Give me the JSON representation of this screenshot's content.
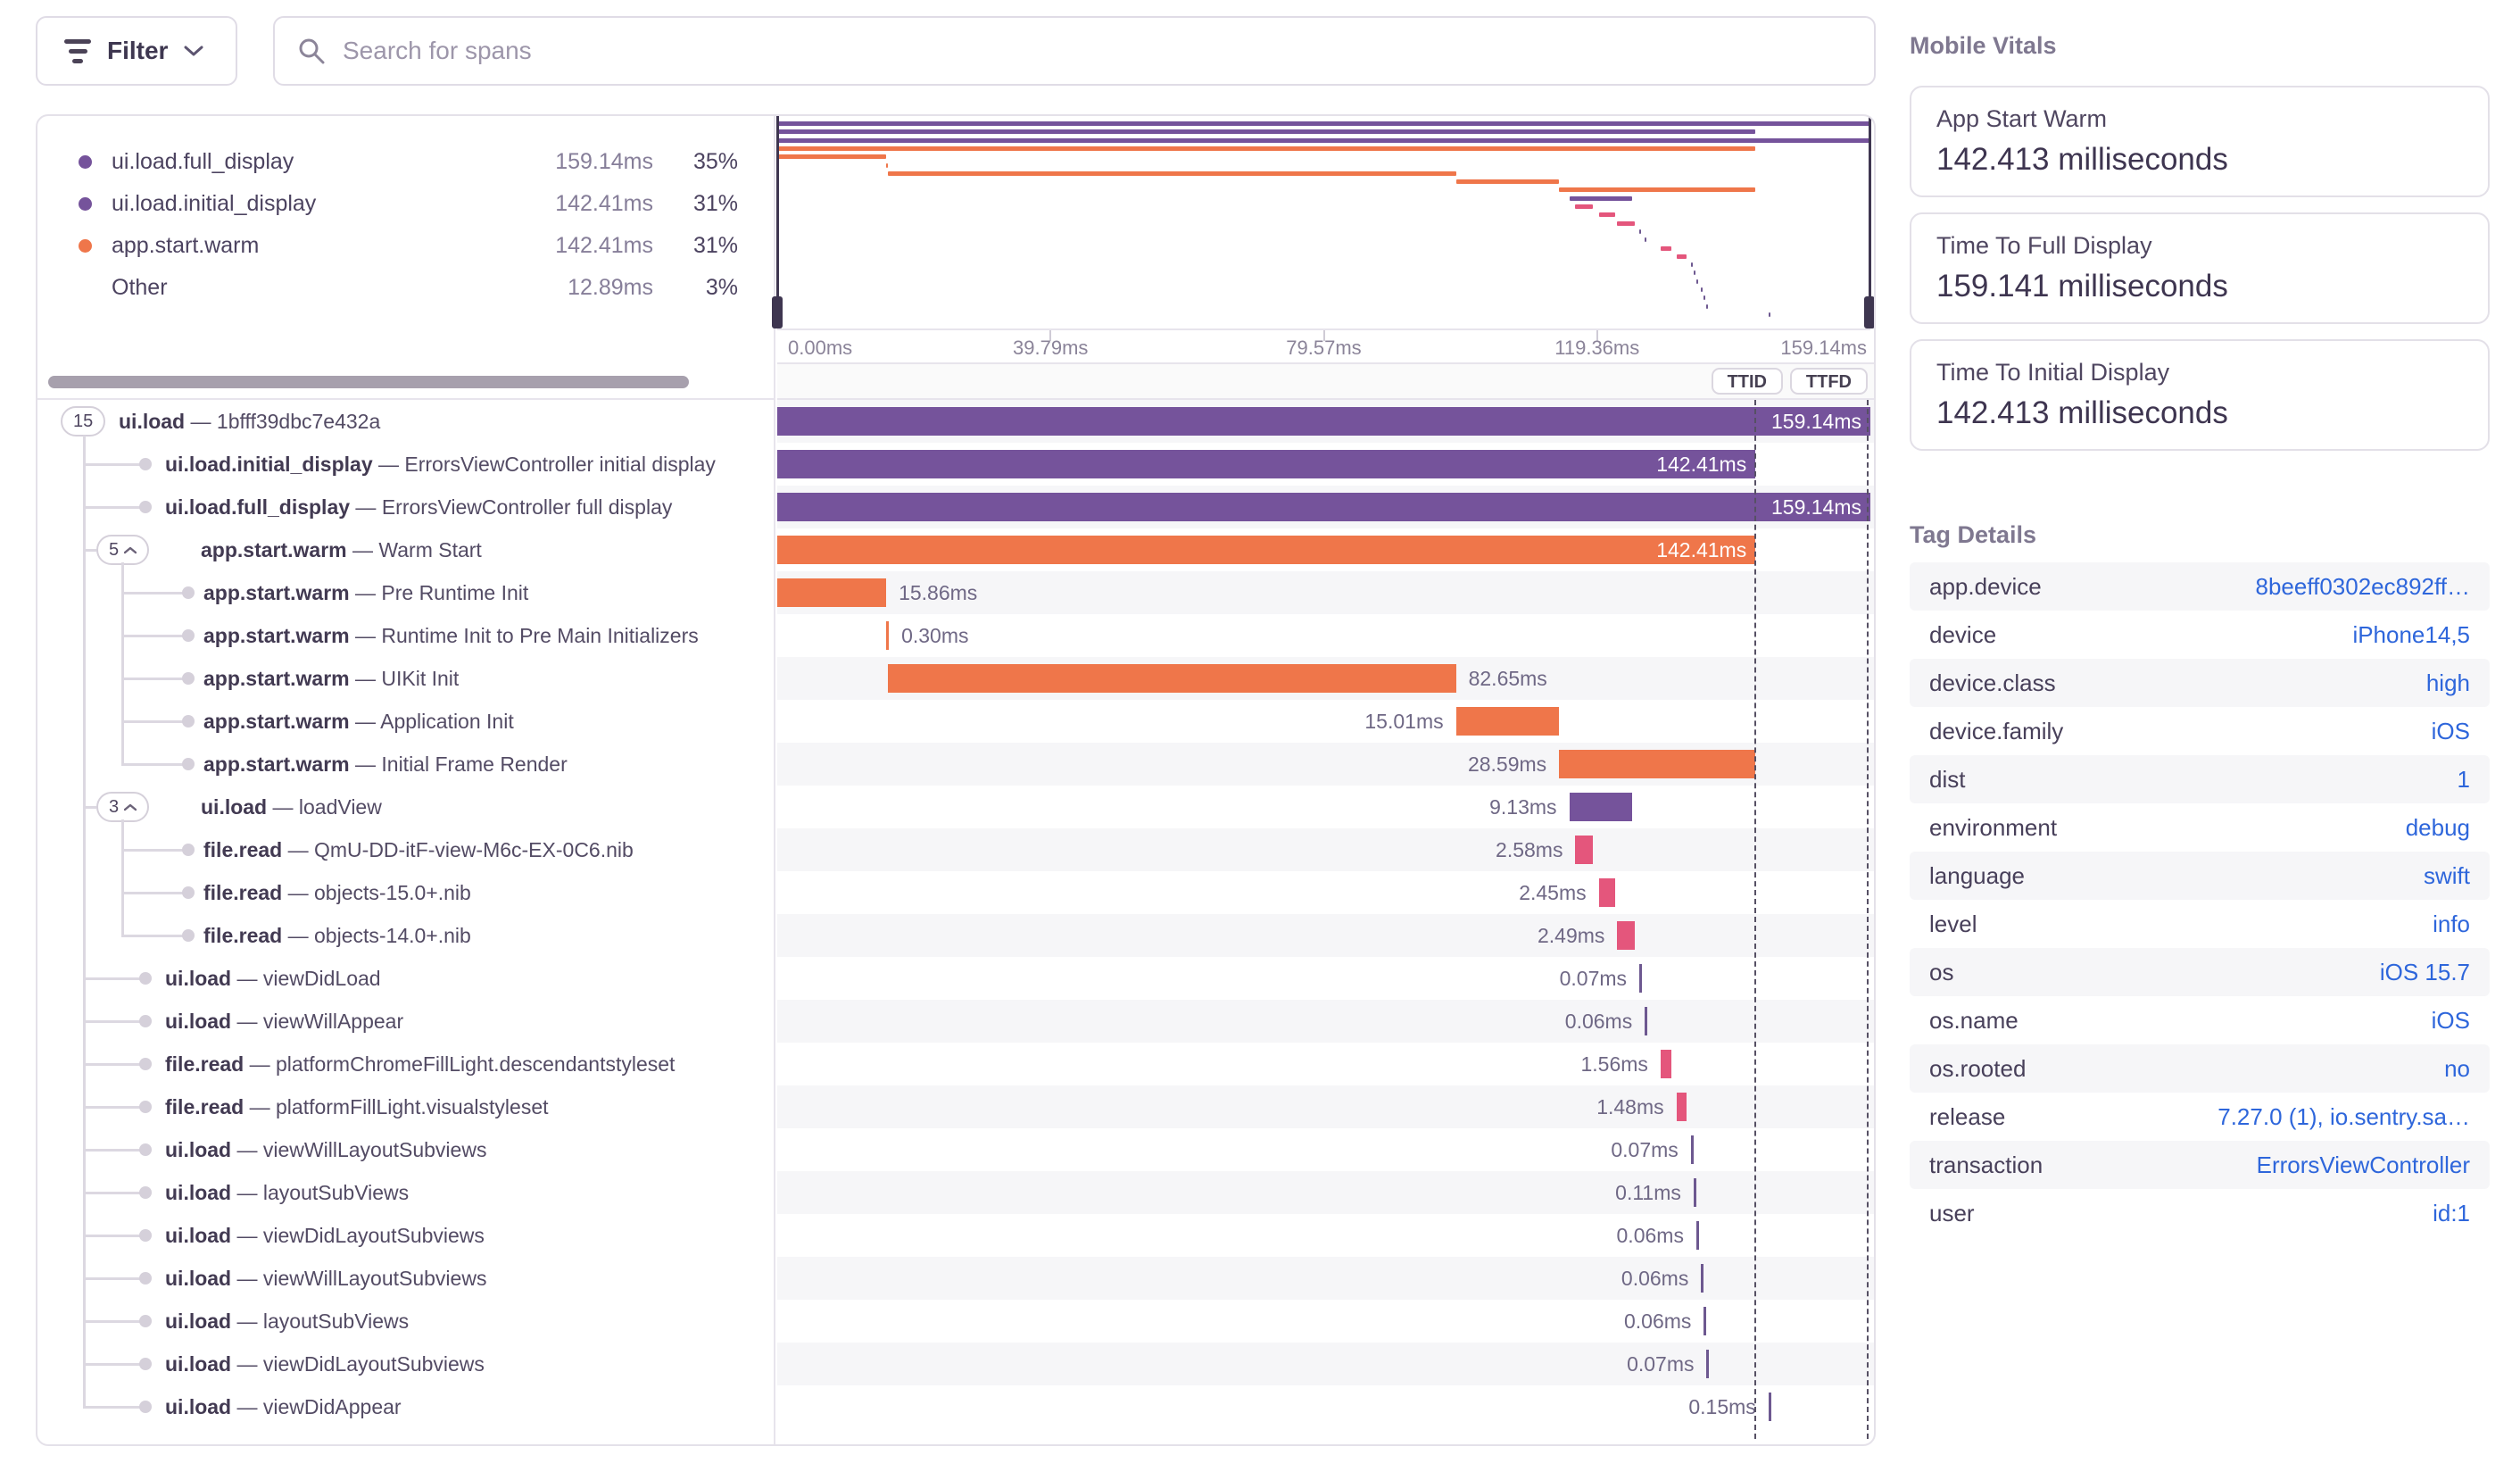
{
  "toolbar": {
    "filter_label": "Filter",
    "search_placeholder": "Search for spans"
  },
  "legend": [
    {
      "label": "ui.load.full_display",
      "duration": "159.14ms",
      "pct": "35%",
      "color": "#75539b"
    },
    {
      "label": "ui.load.initial_display",
      "duration": "142.41ms",
      "pct": "31%",
      "color": "#75539b"
    },
    {
      "label": "app.start.warm",
      "duration": "142.41ms",
      "pct": "31%",
      "color": "#ef764a"
    },
    {
      "label": "Other",
      "duration": "12.89ms",
      "pct": "3%",
      "color": ""
    }
  ],
  "timeline": {
    "total_ms": 159.14,
    "axis_ticks": [
      "0.00ms",
      "39.79ms",
      "79.57ms",
      "119.36ms",
      "159.14ms"
    ],
    "ttid_label": "TTID",
    "ttfd_label": "TTFD",
    "ttid_ms": 142.41,
    "ttfd_ms": 159.14
  },
  "spans_meta": {
    "separator": "—"
  },
  "spans": [
    {
      "op": "ui.load",
      "desc": "1bfff39dbc7e432a",
      "badge": "15",
      "chevron": false,
      "level": 0,
      "start": 0,
      "dur": 159.14,
      "color": "#75539b",
      "label": "159.14ms",
      "label_pos": "inside",
      "tick": false
    },
    {
      "op": "ui.load.initial_display",
      "desc": "ErrorsViewController initial display",
      "badge": "",
      "chevron": false,
      "level": 1,
      "start": 0,
      "dur": 142.41,
      "color": "#75539b",
      "label": "142.41ms",
      "label_pos": "inside",
      "tick": false
    },
    {
      "op": "ui.load.full_display",
      "desc": "ErrorsViewController full display",
      "badge": "",
      "chevron": false,
      "level": 1,
      "start": 0,
      "dur": 159.14,
      "color": "#75539b",
      "label": "159.14ms",
      "label_pos": "inside",
      "tick": false
    },
    {
      "op": "app.start.warm",
      "desc": "Warm Start",
      "badge": "5",
      "chevron": true,
      "level": 1,
      "start": 0,
      "dur": 142.41,
      "color": "#ef764a",
      "label": "142.41ms",
      "label_pos": "inside",
      "tick": false
    },
    {
      "op": "app.start.warm",
      "desc": "Pre Runtime Init",
      "badge": "",
      "chevron": false,
      "level": 2,
      "start": 0,
      "dur": 15.86,
      "color": "#ef764a",
      "label": "15.86ms",
      "label_pos": "right",
      "tick": false
    },
    {
      "op": "app.start.warm",
      "desc": "Runtime Init to Pre Main Initializers",
      "badge": "",
      "chevron": false,
      "level": 2,
      "start": 15.86,
      "dur": 0.3,
      "color": "#ef764a",
      "label": "0.30ms",
      "label_pos": "right",
      "tick": true
    },
    {
      "op": "app.start.warm",
      "desc": "UIKit Init",
      "badge": "",
      "chevron": false,
      "level": 2,
      "start": 16.16,
      "dur": 82.65,
      "color": "#ef764a",
      "label": "82.65ms",
      "label_pos": "right",
      "tick": false
    },
    {
      "op": "app.start.warm",
      "desc": "Application Init",
      "badge": "",
      "chevron": false,
      "level": 2,
      "start": 98.81,
      "dur": 15.01,
      "color": "#ef764a",
      "label": "15.01ms",
      "label_pos": "left",
      "tick": false
    },
    {
      "op": "app.start.warm",
      "desc": "Initial Frame Render",
      "badge": "",
      "chevron": false,
      "level": 2,
      "start": 113.82,
      "dur": 28.59,
      "color": "#ef764a",
      "label": "28.59ms",
      "label_pos": "left",
      "tick": false
    },
    {
      "op": "ui.load",
      "desc": "loadView",
      "badge": "3",
      "chevron": true,
      "level": 1,
      "start": 115.3,
      "dur": 9.13,
      "color": "#75539b",
      "label": "9.13ms",
      "label_pos": "left",
      "tick": false
    },
    {
      "op": "file.read",
      "desc": "QmU-DD-itF-view-M6c-EX-0C6.nib",
      "badge": "",
      "chevron": false,
      "level": 2,
      "start": 116.2,
      "dur": 2.58,
      "color": "#e4567c",
      "label": "2.58ms",
      "label_pos": "left",
      "tick": false
    },
    {
      "op": "file.read",
      "desc": "objects-15.0+.nib",
      "badge": "",
      "chevron": false,
      "level": 2,
      "start": 119.6,
      "dur": 2.45,
      "color": "#e4567c",
      "label": "2.45ms",
      "label_pos": "left",
      "tick": false
    },
    {
      "op": "file.read",
      "desc": "objects-14.0+.nib",
      "badge": "",
      "chevron": false,
      "level": 2,
      "start": 122.3,
      "dur": 2.49,
      "color": "#e4567c",
      "label": "2.49ms",
      "label_pos": "left",
      "tick": false
    },
    {
      "op": "ui.load",
      "desc": "viewDidLoad",
      "badge": "",
      "chevron": false,
      "level": 1,
      "start": 125.5,
      "dur": 0.07,
      "color": "#6d5890",
      "label": "0.07ms",
      "label_pos": "left",
      "tick": true
    },
    {
      "op": "ui.load",
      "desc": "viewWillAppear",
      "badge": "",
      "chevron": false,
      "level": 1,
      "start": 126.3,
      "dur": 0.06,
      "color": "#6d5890",
      "label": "0.06ms",
      "label_pos": "left",
      "tick": true
    },
    {
      "op": "file.read",
      "desc": "platformChromeFillLight.descendantstyleset",
      "badge": "",
      "chevron": false,
      "level": 1,
      "start": 128.6,
      "dur": 1.56,
      "color": "#e4567c",
      "label": "1.56ms",
      "label_pos": "left",
      "tick": false
    },
    {
      "op": "file.read",
      "desc": "platformFillLight.visualstyleset",
      "badge": "",
      "chevron": false,
      "level": 1,
      "start": 130.9,
      "dur": 1.48,
      "color": "#e4567c",
      "label": "1.48ms",
      "label_pos": "left",
      "tick": false
    },
    {
      "op": "ui.load",
      "desc": "viewWillLayoutSubviews",
      "badge": "",
      "chevron": false,
      "level": 1,
      "start": 133.0,
      "dur": 0.07,
      "color": "#6d5890",
      "label": "0.07ms",
      "label_pos": "left",
      "tick": true
    },
    {
      "op": "ui.load",
      "desc": "layoutSubViews",
      "badge": "",
      "chevron": false,
      "level": 1,
      "start": 133.4,
      "dur": 0.11,
      "color": "#6d5890",
      "label": "0.11ms",
      "label_pos": "left",
      "tick": true
    },
    {
      "op": "ui.load",
      "desc": "viewDidLayoutSubviews",
      "badge": "",
      "chevron": false,
      "level": 1,
      "start": 133.8,
      "dur": 0.06,
      "color": "#6d5890",
      "label": "0.06ms",
      "label_pos": "left",
      "tick": true
    },
    {
      "op": "ui.load",
      "desc": "viewWillLayoutSubviews",
      "badge": "",
      "chevron": false,
      "level": 1,
      "start": 134.5,
      "dur": 0.06,
      "color": "#6d5890",
      "label": "0.06ms",
      "label_pos": "left",
      "tick": true
    },
    {
      "op": "ui.load",
      "desc": "layoutSubViews",
      "badge": "",
      "chevron": false,
      "level": 1,
      "start": 134.9,
      "dur": 0.06,
      "color": "#6d5890",
      "label": "0.06ms",
      "label_pos": "left",
      "tick": true
    },
    {
      "op": "ui.load",
      "desc": "viewDidLayoutSubviews",
      "badge": "",
      "chevron": false,
      "level": 1,
      "start": 135.3,
      "dur": 0.07,
      "color": "#6d5890",
      "label": "0.07ms",
      "label_pos": "left",
      "tick": true
    },
    {
      "op": "ui.load",
      "desc": "viewDidAppear",
      "badge": "",
      "chevron": false,
      "level": 1,
      "start": 144.3,
      "dur": 0.15,
      "color": "#6d5890",
      "label": "0.15ms",
      "label_pos": "left",
      "tick": true
    }
  ],
  "vitals": {
    "title": "Mobile Vitals",
    "cards": [
      {
        "title": "App Start Warm",
        "value": "142.413 milliseconds"
      },
      {
        "title": "Time To Full Display",
        "value": "159.141 milliseconds"
      },
      {
        "title": "Time To Initial Display",
        "value": "142.413 milliseconds"
      }
    ]
  },
  "tags": {
    "title": "Tag Details",
    "rows": [
      {
        "key": "app.device",
        "value": "8beeff0302ec892ff…"
      },
      {
        "key": "device",
        "value": "iPhone14,5"
      },
      {
        "key": "device.class",
        "value": "high"
      },
      {
        "key": "device.family",
        "value": "iOS"
      },
      {
        "key": "dist",
        "value": "1"
      },
      {
        "key": "environment",
        "value": "debug"
      },
      {
        "key": "language",
        "value": "swift"
      },
      {
        "key": "level",
        "value": "info"
      },
      {
        "key": "os",
        "value": "iOS 15.7"
      },
      {
        "key": "os.name",
        "value": "iOS"
      },
      {
        "key": "os.rooted",
        "value": "no"
      },
      {
        "key": "release",
        "value": "7.27.0 (1), io.sentry.sa…"
      },
      {
        "key": "transaction",
        "value": "ErrorsViewController"
      },
      {
        "key": "user",
        "value": "id:1"
      }
    ]
  },
  "colors": {
    "purple": "#75539b",
    "orange": "#ef764a",
    "pink": "#e4567c",
    "tick_purple": "#6d5890",
    "link_blue": "#2e66db",
    "handle_dark": "#3e3650"
  }
}
